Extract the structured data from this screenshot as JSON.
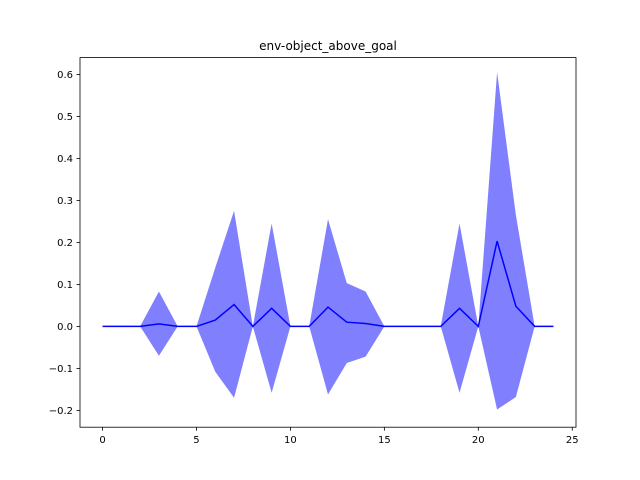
{
  "chart_data": {
    "type": "line",
    "title": "env-object_above_goal",
    "xlabel": "",
    "ylabel": "",
    "xlim": [
      -1.2,
      25.2
    ],
    "ylim": [
      -0.24,
      0.64
    ],
    "xticks": [
      0,
      5,
      10,
      15,
      20,
      25
    ],
    "yticks": [
      -0.2,
      -0.1,
      0.0,
      0.1,
      0.2,
      0.3,
      0.4,
      0.5,
      0.6
    ],
    "x_tick_labels": [
      "0",
      "5",
      "10",
      "15",
      "20",
      "25"
    ],
    "y_tick_labels": [
      "−0.2",
      "−0.1",
      "0.0",
      "0.1",
      "0.2",
      "0.3",
      "0.4",
      "0.5",
      "0.6"
    ],
    "grid": false,
    "legend": "none",
    "line_color": "#0000ff",
    "band_color": "#8080ff",
    "x": [
      0,
      1,
      2,
      3,
      4,
      5,
      6,
      7,
      8,
      9,
      10,
      11,
      12,
      13,
      14,
      15,
      16,
      17,
      18,
      19,
      20,
      21,
      22,
      23,
      24
    ],
    "mean": [
      0.0,
      0.0,
      0.0,
      0.006,
      0.0,
      0.0,
      0.015,
      0.052,
      0.0,
      0.043,
      0.0,
      0.0,
      0.046,
      0.01,
      0.007,
      0.0,
      0.0,
      0.0,
      0.0,
      0.043,
      0.0,
      0.203,
      0.048,
      0.0,
      0.0
    ],
    "upper": [
      0.0,
      0.0,
      0.0,
      0.083,
      0.0,
      0.0,
      0.14,
      0.275,
      0.0,
      0.245,
      0.0,
      0.0,
      0.255,
      0.103,
      0.083,
      0.0,
      0.0,
      0.0,
      0.0,
      0.245,
      0.0,
      0.605,
      0.265,
      0.0,
      0.0
    ],
    "lower": [
      0.0,
      0.0,
      0.0,
      -0.07,
      0.0,
      0.0,
      -0.108,
      -0.17,
      0.0,
      -0.158,
      0.0,
      0.0,
      -0.162,
      -0.087,
      -0.072,
      0.0,
      0.0,
      0.0,
      0.0,
      -0.158,
      0.0,
      -0.198,
      -0.168,
      0.0,
      0.0
    ]
  }
}
